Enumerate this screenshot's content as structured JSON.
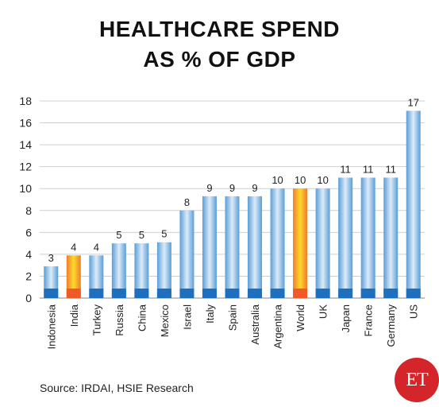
{
  "title_line1": "HEALTHCARE SPEND",
  "title_line2": "AS % OF GDP",
  "source": "Source: IRDAI, HSIE Research",
  "logo_text": "ET",
  "colors": {
    "bar_gradient_dark": "#5a9ed8",
    "bar_gradient_light": "#dcebf8",
    "bar_base": "#1f6fbf",
    "highlight_dark": "#ffd92a",
    "highlight_light": "#f07b2e",
    "highlight_base": "#f05a28",
    "gridline": "#cfcfcf",
    "logo_bg": "#d4262a"
  },
  "chart_data": {
    "type": "bar",
    "categories": [
      "Indonesia",
      "India",
      "Turkey",
      "Russia",
      "China",
      "Mexico",
      "Israel",
      "Italy",
      "Spain",
      "Australia",
      "Argentina",
      "World",
      "UK",
      "Japan",
      "France",
      "Germany",
      "US"
    ],
    "values": [
      2.9,
      3.9,
      3.9,
      5,
      5,
      5.1,
      8,
      9.3,
      9.3,
      9.3,
      10,
      10,
      10,
      11,
      11,
      11,
      17.1
    ],
    "data_labels": [
      "3",
      "4",
      "4",
      "5",
      "5",
      "5",
      "8",
      "9",
      "9",
      "9",
      "10",
      "10",
      "10",
      "11",
      "11",
      "11",
      "17"
    ],
    "highlighted": [
      "India",
      "World"
    ],
    "ylim": [
      0,
      18
    ],
    "yticks": [
      0,
      2,
      4,
      6,
      8,
      10,
      12,
      14,
      16,
      18
    ],
    "grid": true,
    "title": "HEALTHCARE SPEND AS % OF GDP",
    "xlabel": "",
    "ylabel": ""
  }
}
